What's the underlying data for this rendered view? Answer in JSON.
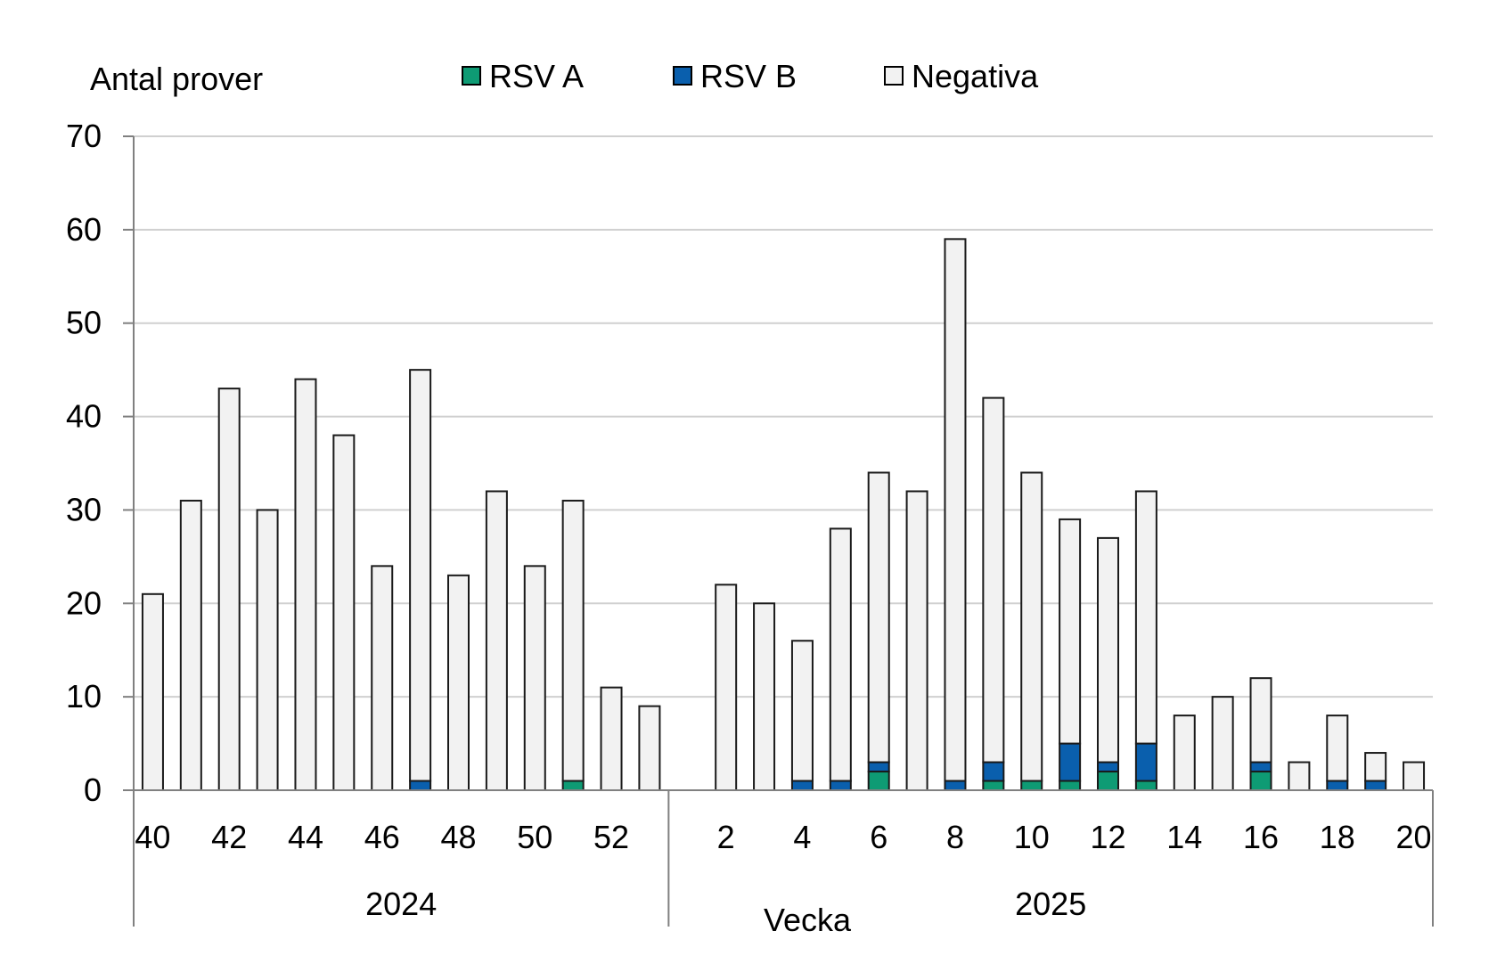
{
  "chart_data": {
    "type": "bar",
    "stacked": true,
    "ylabel": "Antal prover",
    "xlabel": "Vecka",
    "ylim": [
      0,
      70
    ],
    "yticks": [
      0,
      10,
      20,
      30,
      40,
      50,
      60,
      70
    ],
    "grid": "horizontal",
    "legend_position": "top",
    "weeks": [
      40,
      41,
      42,
      43,
      44,
      45,
      46,
      47,
      48,
      49,
      50,
      51,
      52,
      53,
      1,
      2,
      3,
      4,
      5,
      6,
      7,
      8,
      9,
      10,
      11,
      12,
      13,
      14,
      15,
      16,
      17,
      18,
      19,
      20
    ],
    "tick_labels": [
      "40",
      "",
      "42",
      "",
      "44",
      "",
      "46",
      "",
      "48",
      "",
      "50",
      "",
      "52",
      "",
      "",
      "2",
      "",
      "4",
      "",
      "6",
      "",
      "8",
      "",
      "10",
      "",
      "12",
      "",
      "14",
      "",
      "16",
      "",
      "18",
      "",
      "20"
    ],
    "years": [
      {
        "label": "2024",
        "start_index": 0,
        "end_index": 13
      },
      {
        "label": "2025",
        "start_index": 14,
        "end_index": 33
      }
    ],
    "series": [
      {
        "name": "RSV A",
        "color": "#0E9B74",
        "values": [
          0,
          0,
          0,
          0,
          0,
          0,
          0,
          0,
          0,
          0,
          0,
          1,
          0,
          0,
          0,
          0,
          0,
          0,
          0,
          2,
          0,
          0,
          1,
          1,
          1,
          2,
          1,
          0,
          0,
          2,
          0,
          0,
          0,
          0
        ]
      },
      {
        "name": "RSV B",
        "color": "#0A5FAD",
        "values": [
          0,
          0,
          0,
          0,
          0,
          0,
          0,
          1,
          0,
          0,
          0,
          0,
          0,
          0,
          0,
          0,
          0,
          1,
          1,
          1,
          0,
          1,
          2,
          0,
          4,
          1,
          4,
          0,
          0,
          1,
          0,
          1,
          1,
          0
        ]
      },
      {
        "name": "Negativa",
        "color": "#F2F2F2",
        "values": [
          21,
          31,
          43,
          30,
          44,
          38,
          24,
          44,
          23,
          32,
          24,
          30,
          11,
          9,
          0,
          22,
          20,
          15,
          27,
          31,
          32,
          58,
          39,
          33,
          24,
          24,
          27,
          8,
          10,
          9,
          3,
          7,
          3,
          3
        ]
      }
    ]
  }
}
